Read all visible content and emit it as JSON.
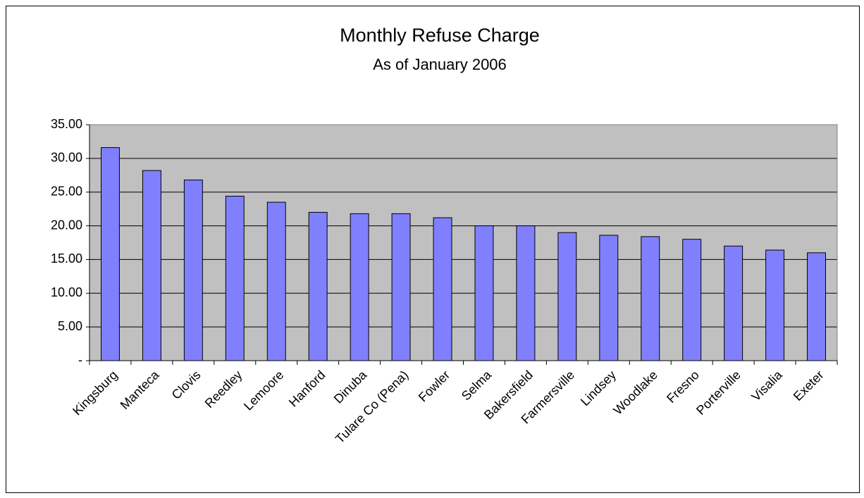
{
  "chart_data": {
    "type": "bar",
    "title": "Monthly Refuse Charge",
    "subtitle": "As of January 2006",
    "categories": [
      "Kingsburg",
      "Manteca",
      "Clovis",
      "Reedley",
      "Lemoore",
      "Hanford",
      "Dinuba",
      "Tulare Co (Pena)",
      "Fowler",
      "Selma",
      "Bakersfield",
      "Farmersville",
      "Lindsey",
      "Woodlake",
      "Fresno",
      "Porterville",
      "Visalia",
      "Exeter"
    ],
    "values": [
      31.6,
      28.2,
      26.8,
      24.4,
      23.5,
      22.0,
      21.8,
      21.8,
      21.2,
      20.0,
      20.0,
      19.0,
      18.6,
      18.4,
      18.0,
      17.0,
      16.4,
      16.0
    ],
    "color": "#8080ff",
    "plot_background": "#c0c0c0",
    "ylim": [
      0,
      35
    ],
    "yticks": [
      {
        "value": 0,
        "label": "-"
      },
      {
        "value": 5,
        "label": "5.00"
      },
      {
        "value": 10,
        "label": "10.00"
      },
      {
        "value": 15,
        "label": "15.00"
      },
      {
        "value": 20,
        "label": "20.00"
      },
      {
        "value": 25,
        "label": "25.00"
      },
      {
        "value": 30,
        "label": "30.00"
      },
      {
        "value": 35,
        "label": "35.00"
      }
    ],
    "grid": true
  }
}
